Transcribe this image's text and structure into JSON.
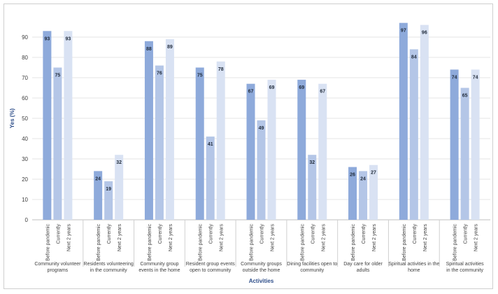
{
  "chart_data": {
    "type": "bar",
    "title": "",
    "xlabel": "Activities",
    "ylabel": "Yes (%)",
    "ylim": [
      0,
      100
    ],
    "yticks": [
      0,
      10,
      20,
      30,
      40,
      50,
      60,
      70,
      80,
      90
    ],
    "grid": true,
    "categories": [
      "Community volunteer programs",
      "Residents volunteering in the community",
      "Community group events in the home",
      "Resident group events open to community",
      "Community groups outside the home",
      "Dining facilities open to community",
      "Day care for older adults",
      "Spiritual activities in the home",
      "Spiritual activities in the community"
    ],
    "category_lines": [
      [
        "Community volunteer",
        "programs"
      ],
      [
        "Residents volunteering",
        "in the community"
      ],
      [
        "Community group",
        "events in the home"
      ],
      [
        "Resident group events",
        "open to community"
      ],
      [
        "Community groups",
        "outside the home"
      ],
      [
        "Dining facilities open to",
        "community"
      ],
      [
        "Day care for older",
        "adults"
      ],
      [
        "Spiritual activities in the",
        "home"
      ],
      [
        "Spiritual activities",
        "in the community"
      ]
    ],
    "series": [
      {
        "name": "Before pandemic",
        "color": "#8eaadb",
        "values": [
          93,
          24,
          88,
          75,
          67,
          69,
          26,
          97,
          74
        ]
      },
      {
        "name": "Currently",
        "color": "#b4c6e7",
        "values": [
          75,
          19,
          76,
          41,
          49,
          32,
          24,
          84,
          65
        ]
      },
      {
        "name": "Next 2 years",
        "color": "#d9e2f3",
        "values": [
          93,
          32,
          89,
          78,
          69,
          67,
          27,
          96,
          74
        ]
      }
    ]
  }
}
